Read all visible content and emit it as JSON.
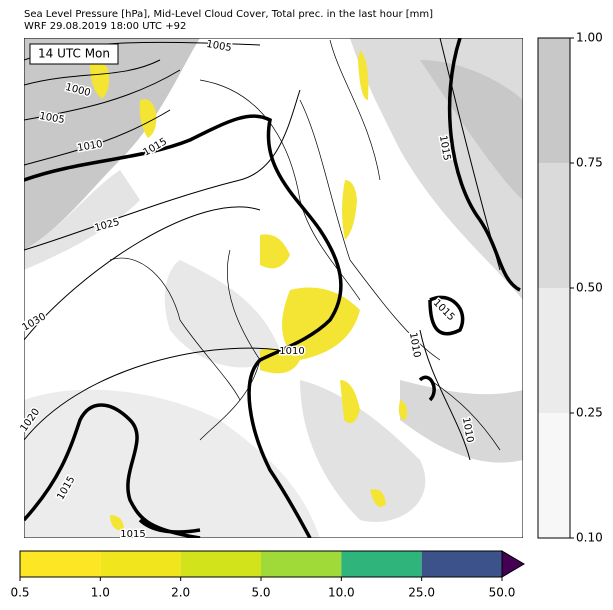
{
  "header": {
    "lines": [
      "Sea Level Pressure [hPa], Mid-Level Cloud Cover, Total prec. in the last hour [mm]",
      "WRF 29.08.2019 18:00 UTC +92"
    ]
  },
  "map": {
    "time_label": "14 UTC Mon",
    "isobar_labels": [
      "1005",
      "1000",
      "1005",
      "1010",
      "1015",
      "1025",
      "1030",
      "1020",
      "1015",
      "1015",
      "1010",
      "1010",
      "1015",
      "1010",
      "1015"
    ]
  },
  "cloud_colorbar": {
    "ticks": [
      "0.10",
      "0.25",
      "0.50",
      "0.75",
      "1.00"
    ],
    "colors": [
      "#f7f7f7",
      "#ebebeb",
      "#dadada",
      "#c8c8c8"
    ]
  },
  "precip_colorbar": {
    "ticks": [
      "0.5",
      "1.0",
      "2.0",
      "5.0",
      "10.0",
      "25.0",
      "50.0"
    ],
    "colors": [
      "#fde725",
      "#f1e51d",
      "#d2e21b",
      "#a0da39",
      "#2fb47c",
      "#3b528b"
    ],
    "extend_color": "#440154"
  }
}
